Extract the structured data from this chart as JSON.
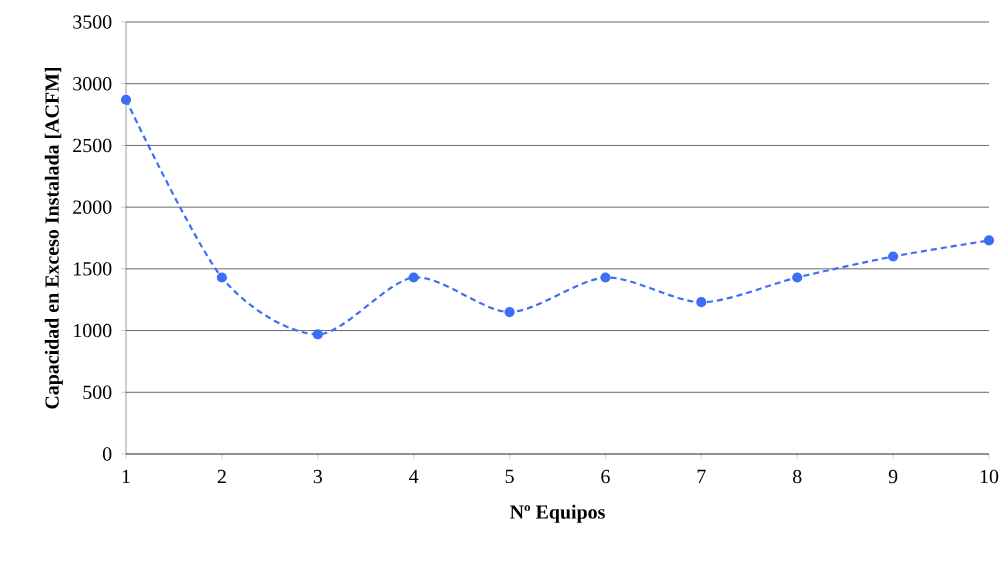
{
  "chart_data": {
    "type": "line",
    "xlabel": "Nº Equipos",
    "ylabel": "Capacidad en Exceso Instalada [ACFM]",
    "x": [
      1,
      2,
      3,
      4,
      5,
      6,
      7,
      8,
      9,
      10
    ],
    "series": [
      {
        "color": "#3d6ef5",
        "values": [
          2870,
          1430,
          970,
          1430,
          1150,
          1430,
          1230,
          1430,
          1600,
          1730
        ]
      }
    ],
    "xlim": [
      1,
      10
    ],
    "xticks": [
      1,
      2,
      3,
      4,
      5,
      6,
      7,
      8,
      9,
      10
    ],
    "ylim": [
      0,
      3500
    ],
    "yticks": [
      0,
      500,
      1000,
      1500,
      2000,
      2500,
      3000,
      3500
    ],
    "grid": "y",
    "marker": "circle",
    "line_style": "dashed"
  }
}
